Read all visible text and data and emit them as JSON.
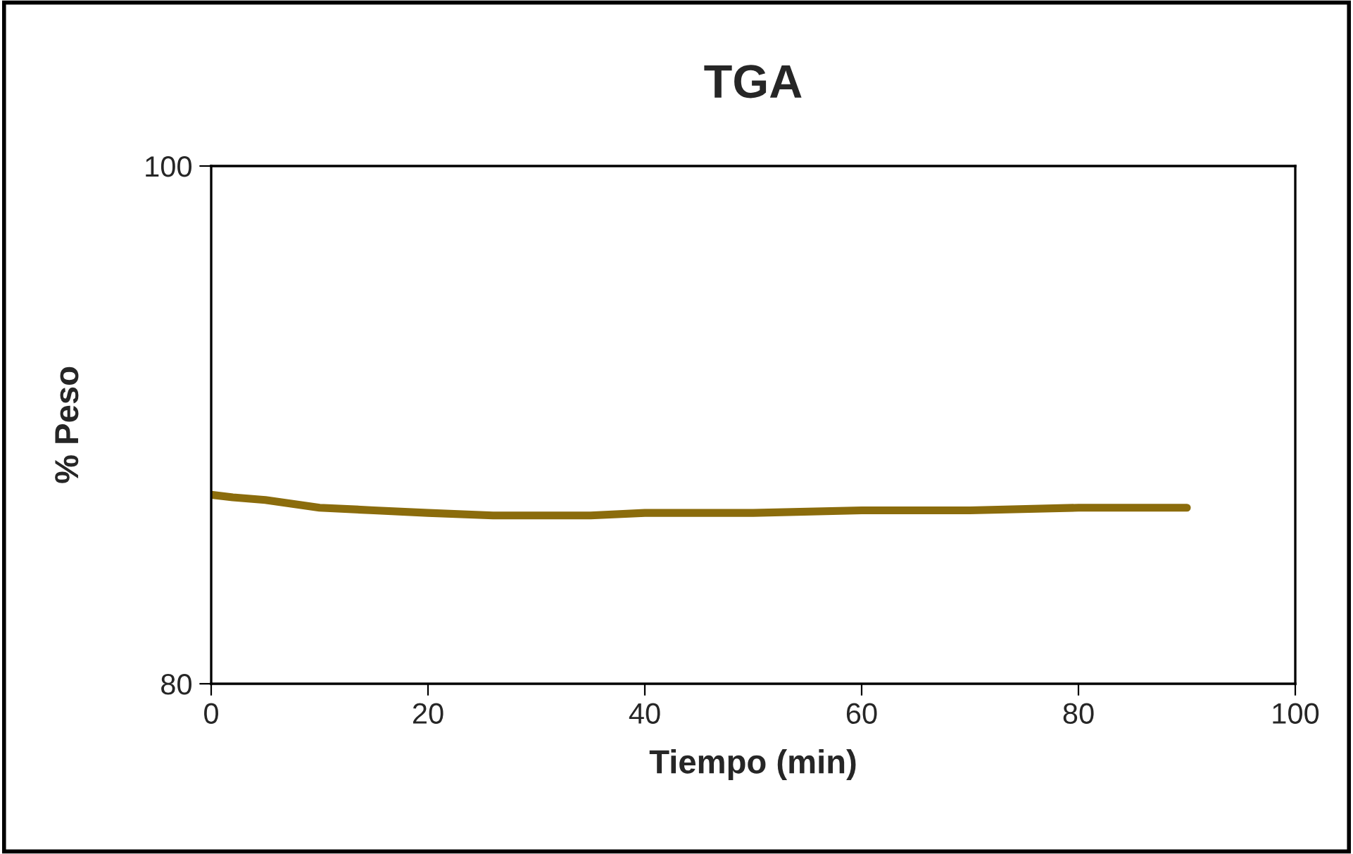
{
  "chart_data": {
    "type": "line",
    "title": "TGA",
    "xlabel": "Tiempo (min)",
    "ylabel": "% Peso",
    "x": [
      0,
      2,
      5,
      10,
      15,
      20,
      26,
      35,
      40,
      50,
      60,
      70,
      80,
      90
    ],
    "series": [
      {
        "color": "#8b6c0c",
        "values": [
          87.3,
          87.2,
          87.1,
          86.8,
          86.7,
          86.6,
          86.5,
          86.5,
          86.6,
          86.6,
          86.7,
          86.7,
          86.8,
          86.8
        ]
      }
    ],
    "xlim": [
      0,
      100
    ],
    "xticks": [
      0,
      20,
      40,
      60,
      80,
      100
    ],
    "ylim": [
      80,
      100
    ],
    "yticks": [
      80,
      100
    ],
    "grid": false,
    "marker": "none",
    "line_style": "solid"
  }
}
